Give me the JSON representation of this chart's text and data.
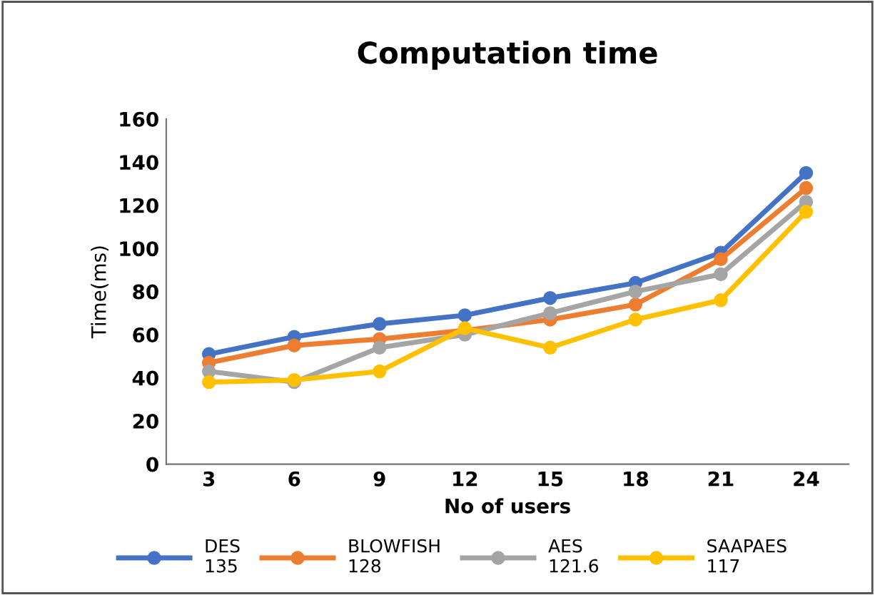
{
  "chart_data": {
    "type": "line",
    "title": "Computation time",
    "xlabel": "No of users",
    "ylabel": "Time(ms)",
    "categories": [
      "3",
      "6",
      "9",
      "12",
      "15",
      "18",
      "21",
      "24"
    ],
    "series": [
      {
        "name": "DES\n135",
        "color": "#4472c4",
        "values": [
          51,
          59,
          65,
          69,
          77,
          84,
          98,
          135
        ]
      },
      {
        "name": "BLOWFISH\n128",
        "color": "#ed7d31",
        "values": [
          47,
          55,
          58,
          62,
          67,
          74,
          95,
          128
        ]
      },
      {
        "name": "AES\n121.6",
        "color": "#a5a5a5",
        "values": [
          43,
          38,
          54,
          60,
          70,
          80,
          88,
          121.6
        ]
      },
      {
        "name": "SAAPAES\n117",
        "color": "#ffc000",
        "values": [
          38,
          39,
          43,
          63,
          54,
          67,
          76,
          117
        ]
      }
    ],
    "ylim": [
      0,
      160
    ],
    "yticks": [
      0,
      20,
      40,
      60,
      80,
      100,
      120,
      140,
      160
    ],
    "grid": false,
    "legend": "bottom",
    "marker": "circle",
    "line_style": "solid"
  }
}
